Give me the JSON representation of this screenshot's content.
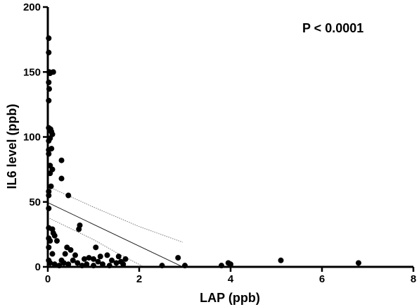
{
  "chart_data": {
    "type": "scatter",
    "title": "",
    "xlabel": "LAP (ppb)",
    "ylabel": "IL6 level (ppb)",
    "xlim": [
      0,
      8
    ],
    "ylim": [
      0,
      200
    ],
    "x_ticks": [
      0,
      2,
      4,
      6,
      8
    ],
    "y_ticks": [
      0,
      50,
      100,
      150,
      200
    ],
    "annotation": "P < 0.0001",
    "grid": false,
    "legend": "none",
    "regression": {
      "intercept": 49.5,
      "slope": -16.9,
      "x_range": [
        0,
        2.95
      ],
      "band_x_range": [
        0,
        2.95
      ]
    },
    "confidence_band": {
      "upper": [
        [
          0,
          62
        ],
        [
          1,
          46
        ],
        [
          2,
          31
        ],
        [
          2.95,
          19
        ]
      ],
      "lower": [
        [
          0,
          38
        ],
        [
          1,
          21
        ],
        [
          1.5,
          11
        ],
        [
          2.1,
          0
        ]
      ]
    },
    "points": [
      [
        0.02,
        176
      ],
      [
        0.02,
        165
      ],
      [
        0.03,
        150
      ],
      [
        0.05,
        149
      ],
      [
        0.12,
        150
      ],
      [
        0.02,
        142
      ],
      [
        0.03,
        137
      ],
      [
        0.02,
        128
      ],
      [
        0.02,
        107
      ],
      [
        0.06,
        106
      ],
      [
        0.08,
        104
      ],
      [
        0.1,
        102
      ],
      [
        0.05,
        99
      ],
      [
        0.02,
        97
      ],
      [
        0.02,
        90
      ],
      [
        0.08,
        91
      ],
      [
        0.02,
        87
      ],
      [
        0.05,
        78
      ],
      [
        0.1,
        75
      ],
      [
        0.05,
        72
      ],
      [
        0.07,
        62
      ],
      [
        0.02,
        58
      ],
      [
        0.02,
        55
      ],
      [
        0.3,
        82
      ],
      [
        0.3,
        68
      ],
      [
        0.45,
        55
      ],
      [
        0.02,
        45
      ],
      [
        0.02,
        30
      ],
      [
        0.1,
        29
      ],
      [
        0.12,
        26
      ],
      [
        0.02,
        22
      ],
      [
        0.05,
        20
      ],
      [
        0.15,
        24
      ],
      [
        0.2,
        20
      ],
      [
        0.02,
        15
      ],
      [
        0.1,
        10
      ],
      [
        0.02,
        5
      ],
      [
        0.05,
        3
      ],
      [
        0.15,
        2
      ],
      [
        0.25,
        1
      ],
      [
        0.35,
        3
      ],
      [
        0.38,
        10
      ],
      [
        0.42,
        15
      ],
      [
        0.5,
        13
      ],
      [
        0.6,
        9
      ],
      [
        0.7,
        32
      ],
      [
        0.68,
        29
      ],
      [
        0.55,
        5
      ],
      [
        0.65,
        3
      ],
      [
        0.8,
        6
      ],
      [
        0.85,
        2
      ],
      [
        0.9,
        7
      ],
      [
        1.0,
        6
      ],
      [
        1.05,
        15
      ],
      [
        1.1,
        4
      ],
      [
        1.2,
        2
      ],
      [
        1.3,
        9
      ],
      [
        1.4,
        5
      ],
      [
        1.5,
        3
      ],
      [
        1.55,
        8
      ],
      [
        1.6,
        4
      ],
      [
        1.65,
        2
      ],
      [
        1.7,
        6
      ],
      [
        1.0,
        1
      ],
      [
        0.75,
        1
      ],
      [
        1.35,
        1
      ],
      [
        2.85,
        7
      ],
      [
        2.5,
        1
      ],
      [
        3.0,
        1
      ],
      [
        3.8,
        1
      ],
      [
        3.95,
        3
      ],
      [
        4.0,
        2
      ],
      [
        5.1,
        5
      ],
      [
        6.8,
        3
      ],
      [
        0.3,
        5
      ],
      [
        0.45,
        2
      ],
      [
        1.15,
        8
      ]
    ]
  }
}
